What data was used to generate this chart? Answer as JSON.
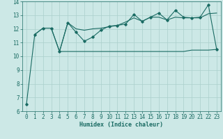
{
  "title": "",
  "xlabel": "Humidex (Indice chaleur)",
  "bg_color": "#cce8e6",
  "grid_color": "#aacfcc",
  "line_color": "#1a6b63",
  "x": [
    0,
    1,
    2,
    3,
    4,
    5,
    6,
    7,
    8,
    9,
    10,
    11,
    12,
    13,
    14,
    15,
    16,
    17,
    18,
    19,
    20,
    21,
    22,
    23
  ],
  "line1": [
    null,
    11.6,
    12.05,
    12.05,
    10.35,
    12.45,
    12.0,
    11.9,
    12.0,
    12.05,
    12.15,
    12.25,
    12.5,
    12.8,
    12.55,
    12.85,
    12.85,
    12.65,
    12.85,
    12.8,
    12.8,
    12.8,
    13.1,
    13.15
  ],
  "line2": [
    6.5,
    11.58,
    12.05,
    12.05,
    10.35,
    12.45,
    11.75,
    11.1,
    11.4,
    11.9,
    12.2,
    12.25,
    12.35,
    13.05,
    12.55,
    12.85,
    13.15,
    12.65,
    13.35,
    12.85,
    12.8,
    12.85,
    13.75,
    10.5
  ],
  "line3": [
    null,
    null,
    null,
    null,
    10.35,
    10.35,
    10.35,
    10.35,
    10.35,
    10.35,
    10.35,
    10.35,
    10.35,
    10.35,
    10.35,
    10.35,
    10.35,
    10.35,
    10.35,
    10.35,
    10.45,
    10.45,
    10.45,
    10.5
  ],
  "ylim": [
    6,
    14
  ],
  "xlim": [
    -0.5,
    23.5
  ],
  "yticks": [
    6,
    7,
    8,
    9,
    10,
    11,
    12,
    13,
    14
  ],
  "xticks": [
    0,
    1,
    2,
    3,
    4,
    5,
    6,
    7,
    8,
    9,
    10,
    11,
    12,
    13,
    14,
    15,
    16,
    17,
    18,
    19,
    20,
    21,
    22,
    23
  ],
  "xlabel_fontsize": 6.0,
  "tick_fontsize": 5.5
}
